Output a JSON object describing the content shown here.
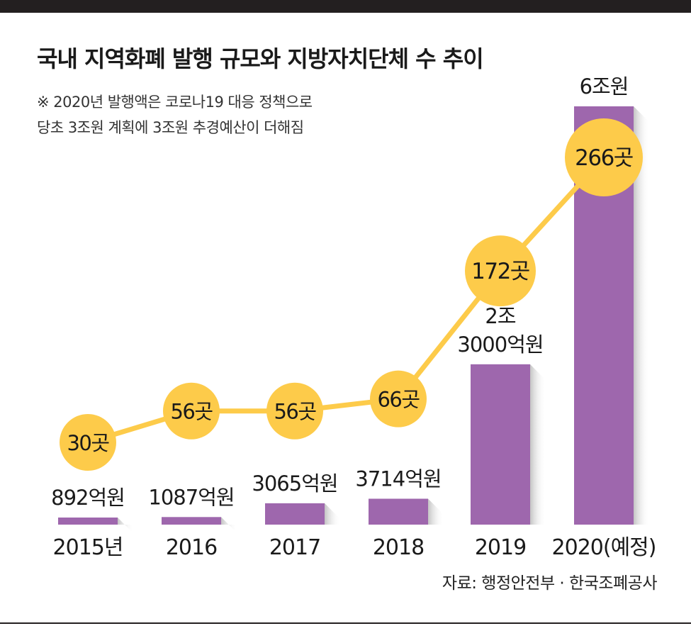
{
  "title": "국내 지역화폐 발행 규모와 지방자치단체 수 추이",
  "notes": {
    "line1": "※ 2020년 발행액은 코로나19 대응 정책으로",
    "line2": "당초 3조원 계획에 3조원 추경예산이 더해짐"
  },
  "source": "자료: 행정안전부 · 한국조폐공사",
  "colors": {
    "bar": "#9e67ad",
    "circle": "#fdcb4a",
    "line": "#fdcb4a",
    "text": "#1a1a1a",
    "frame": "#231f20"
  },
  "chart_data": {
    "type": "bar",
    "categories": [
      "2015년",
      "2016",
      "2017",
      "2018",
      "2019",
      "2020(예정)"
    ],
    "series": [
      {
        "kind": "bar",
        "unit": "억원",
        "values": [
          892,
          1087,
          3065,
          3714,
          23000,
          60000
        ],
        "value_labels": [
          [
            "892억원"
          ],
          [
            "1087억원"
          ],
          [
            "3065억원"
          ],
          [
            "3714억원"
          ],
          [
            "2조",
            "3000억원"
          ],
          [
            "6조원"
          ]
        ]
      },
      {
        "kind": "line",
        "unit": "곳",
        "values": [
          30,
          56,
          56,
          66,
          172,
          266
        ],
        "value_labels": [
          "30곳",
          "56곳",
          "56곳",
          "66곳",
          "172곳",
          "266곳"
        ]
      }
    ]
  }
}
